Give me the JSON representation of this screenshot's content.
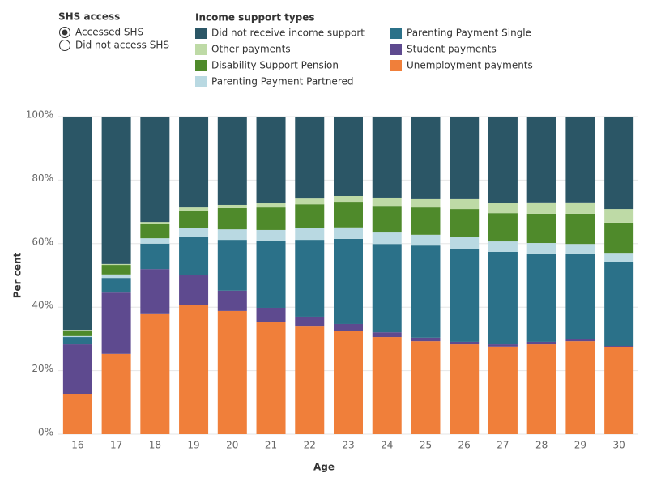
{
  "filter": {
    "title": "SHS access",
    "options": [
      "Accessed SHS",
      "Did not access SHS"
    ],
    "selected": 0
  },
  "chart_data": {
    "type": "stacked_bar",
    "legend_title": "Income support types",
    "x_label": "Age",
    "y_label": "Per cent",
    "categories": [
      "16",
      "17",
      "18",
      "19",
      "20",
      "21",
      "22",
      "23",
      "24",
      "25",
      "26",
      "27",
      "28",
      "29",
      "30"
    ],
    "series": [
      {
        "name": "Did not receive income support",
        "color": "#2b5666",
        "values": [
          67.4,
          46.4,
          33.2,
          28.6,
          27.8,
          27.3,
          25.8,
          25.0,
          25.5,
          26.0,
          26.0,
          27.1,
          27.0,
          27.0,
          29.1
        ]
      },
      {
        "name": "Other payments",
        "color": "#bedaa6",
        "values": [
          0.2,
          0.3,
          0.7,
          1.0,
          1.0,
          1.3,
          1.8,
          1.8,
          2.6,
          2.6,
          3.1,
          3.3,
          3.6,
          3.6,
          4.3
        ]
      },
      {
        "name": "Disability Support Pension",
        "color": "#4f8a2b",
        "values": [
          1.5,
          3.0,
          4.4,
          5.6,
          6.7,
          7.1,
          7.6,
          8.1,
          8.4,
          8.6,
          8.9,
          8.9,
          9.2,
          9.5,
          9.5
        ]
      },
      {
        "name": "Parenting Payment Partnered",
        "color": "#b9d9e2",
        "values": [
          0.3,
          1.1,
          1.7,
          2.8,
          3.3,
          3.3,
          3.6,
          3.6,
          3.6,
          3.4,
          3.6,
          3.3,
          3.3,
          3.0,
          2.8
        ]
      },
      {
        "name": "Parenting Payment Single",
        "color": "#2b7189",
        "values": [
          2.3,
          4.6,
          8.0,
          12.0,
          16.0,
          21.2,
          24.2,
          26.8,
          27.8,
          29.0,
          29.3,
          29.1,
          27.8,
          26.8,
          26.5
        ]
      },
      {
        "name": "Student payments",
        "color": "#5e4a8f",
        "values": [
          15.8,
          19.3,
          14.2,
          9.2,
          6.4,
          4.6,
          3.1,
          2.3,
          1.5,
          1.1,
          0.8,
          0.7,
          0.8,
          0.8,
          0.5
        ]
      },
      {
        "name": "Unemployment payments",
        "color": "#f07f3a",
        "values": [
          12.5,
          25.3,
          37.8,
          40.8,
          38.8,
          35.2,
          33.9,
          32.4,
          30.6,
          29.3,
          28.3,
          27.6,
          28.3,
          29.3,
          27.3
        ]
      }
    ],
    "ylim": [
      0,
      100
    ],
    "yticks": [
      {
        "value": 0,
        "label": "0%"
      },
      {
        "value": 20,
        "label": "20%"
      },
      {
        "value": 40,
        "label": "40%"
      },
      {
        "value": 60,
        "label": "60%"
      },
      {
        "value": 80,
        "label": "80%"
      },
      {
        "value": 100,
        "label": "100%"
      }
    ],
    "grid": true
  }
}
